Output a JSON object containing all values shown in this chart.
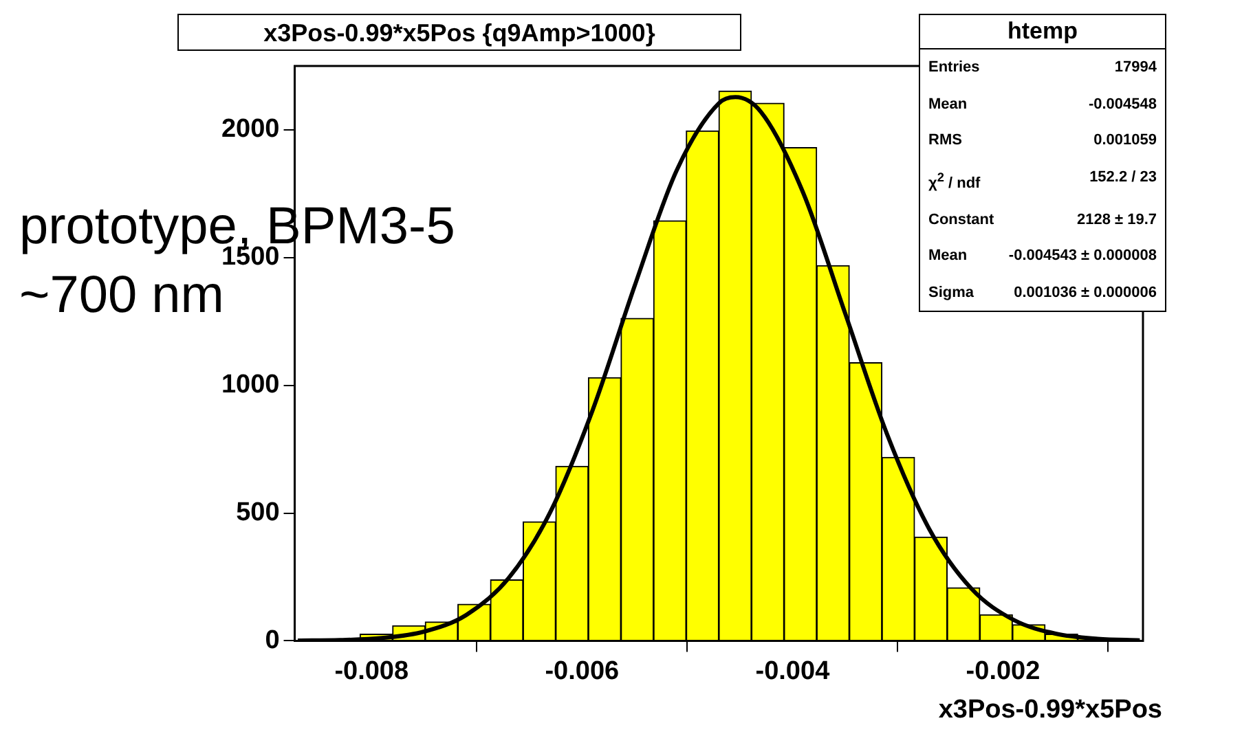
{
  "chart_data": {
    "type": "histogram",
    "title": "x3Pos-0.99*x5Pos {q9Amp>1000}",
    "xlabel": "x3Pos-0.99*x5Pos",
    "annotations": [
      "prototype, BPM3-5",
      "~700 nm",
      "htemp",
      "Entries",
      "17994",
      "Mean",
      "-0.004548",
      "RMS",
      "0.001059",
      "χ$^{2}$ / ndf",
      "152.2 / 23",
      "Constant",
      "2128 ± 19.7",
      "Mean",
      "-0.004543 ± 0.000008",
      "Sigma",
      "0.001036 ± 0.000006"
    ],
    "bins": [
      -0.00873,
      -0.00842,
      -0.00811,
      -0.0078,
      -0.00749,
      -0.00718,
      -0.00687,
      -0.00656,
      -0.00625,
      -0.00594,
      -0.00563,
      -0.00532,
      -0.00501,
      -0.0047,
      -0.00439,
      -0.00408,
      -0.00377,
      -0.00346,
      -0.00315,
      -0.00284,
      -0.00253,
      -0.00222,
      -0.00191,
      -0.0016,
      -0.00129,
      -0.00098,
      -0.00067
    ],
    "series": [
      {
        "color": "#ffff00",
        "values": [
          2,
          null,
          26,
          59,
          74,
          143,
          239,
          466,
          683,
          1030,
          1262,
          1644,
          1996,
          2152,
          2104,
          1931,
          1469,
          1089,
          718,
          406,
          208,
          102,
          63,
          26,
          9,
          null
        ]
      },
      {
        "type": "line",
        "color": "#000000",
        "x": [
          -0.0087,
          -0.0083,
          -0.0079,
          -0.0075,
          -0.0071,
          -0.0067,
          -0.0063,
          -0.0059,
          -0.0055,
          -0.0051,
          -0.0047,
          -0.004543,
          -0.0043,
          -0.0039,
          -0.0035,
          -0.0031,
          -0.0027,
          -0.0023,
          -0.0019,
          -0.0015,
          -0.0011,
          -0.0007
        ],
        "values": [
          1,
          3,
          11,
          36,
          101,
          244,
          505,
          902,
          1389,
          1842,
          2104,
          2128,
          2070,
          1755,
          1282,
          807,
          437,
          204,
          82,
          28,
          8,
          2
        ]
      }
    ],
    "xlim": [
      -0.00873,
      -0.00067
    ],
    "xticks": [
      -0.008,
      -0.006,
      -0.004,
      -0.002
    ],
    "ylim": [
      0,
      2250
    ],
    "yticks": [
      0,
      500,
      1000,
      1500,
      2000
    ],
    "grid": false,
    "legend": false,
    "marker": "none",
    "line_style": "solid"
  }
}
